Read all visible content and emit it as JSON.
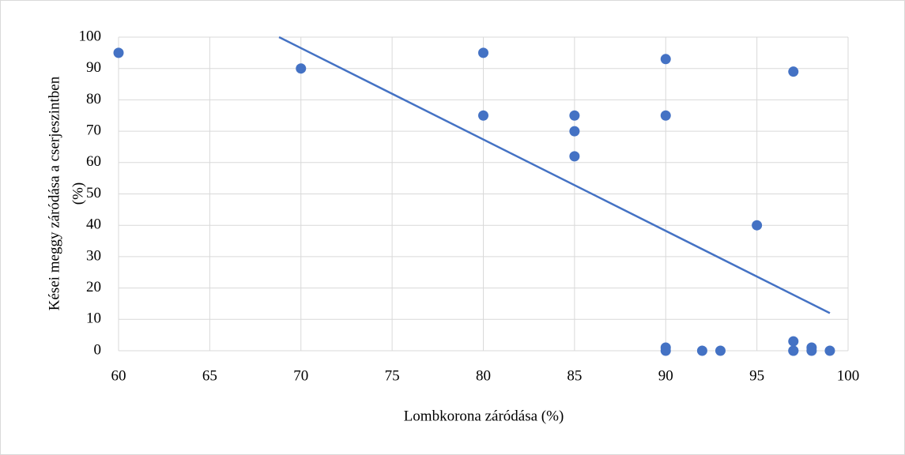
{
  "chart_data": {
    "type": "scatter",
    "xlabel": "Lombkorona záródása (%)",
    "ylabel": [
      "Kései meggy záródása a cserjeszintben",
      "(%)"
    ],
    "x": [
      60,
      70,
      80,
      80,
      85,
      85,
      85,
      90,
      90,
      90,
      90,
      92,
      93,
      95,
      97,
      97,
      97,
      97,
      98,
      98,
      99
    ],
    "values": [
      95,
      90,
      95,
      75,
      75,
      70,
      62,
      93,
      75,
      1,
      0,
      0,
      0,
      40,
      89,
      3,
      0,
      0,
      1,
      0,
      0
    ],
    "color": "#4472c4",
    "trendline": {
      "x": [
        68.8,
        99
      ],
      "y": [
        100,
        12
      ],
      "color": "#4472c4"
    },
    "xlim": [
      60,
      100
    ],
    "xticks": [
      60,
      65,
      70,
      75,
      80,
      85,
      90,
      95,
      100
    ],
    "ylim": [
      0,
      100
    ],
    "yticks": [
      0,
      10,
      20,
      30,
      40,
      50,
      60,
      70,
      80,
      90,
      100
    ],
    "grid": true
  }
}
